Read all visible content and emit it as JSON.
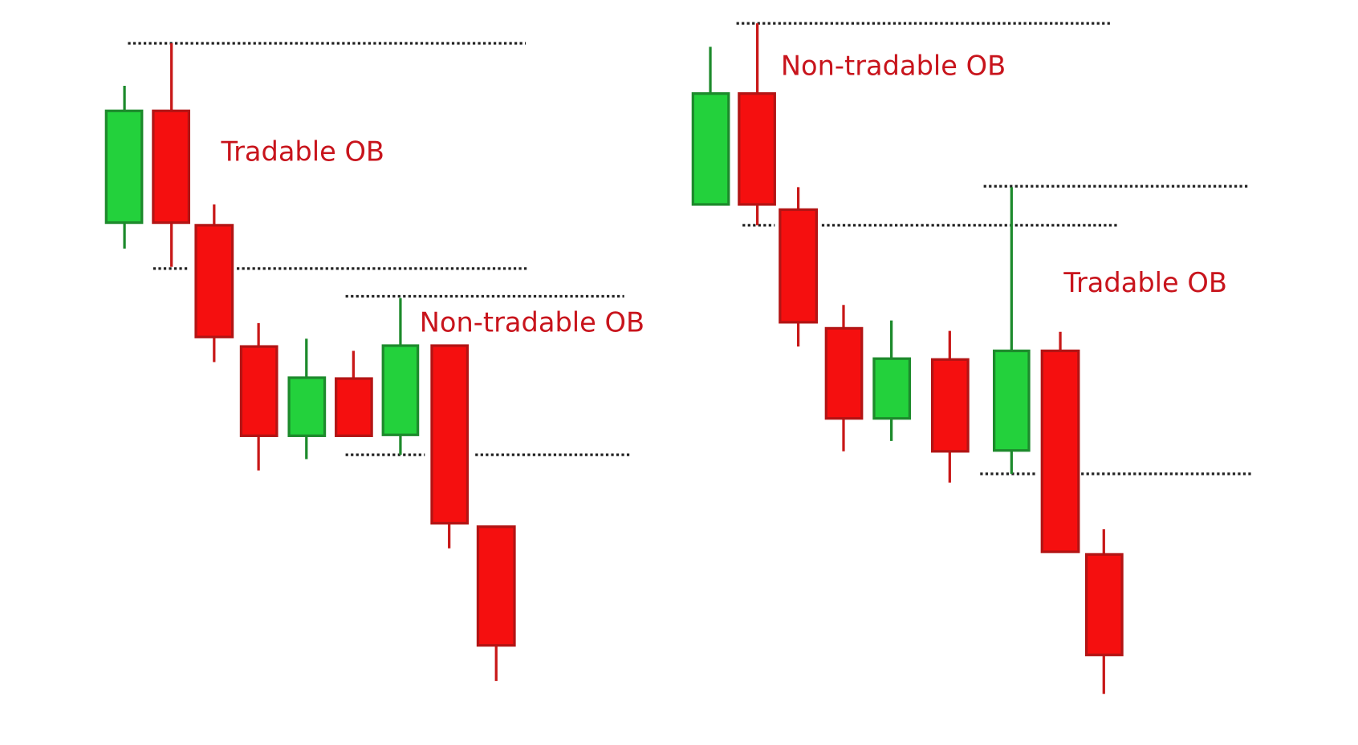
{
  "left_panel": {
    "tradable_label": "Tradable OB",
    "non_tradable_label": "Non-tradable OB"
  },
  "right_panel": {
    "non_tradable_label": "Non-tradable OB",
    "tradable_label": "Tradable OB"
  }
}
